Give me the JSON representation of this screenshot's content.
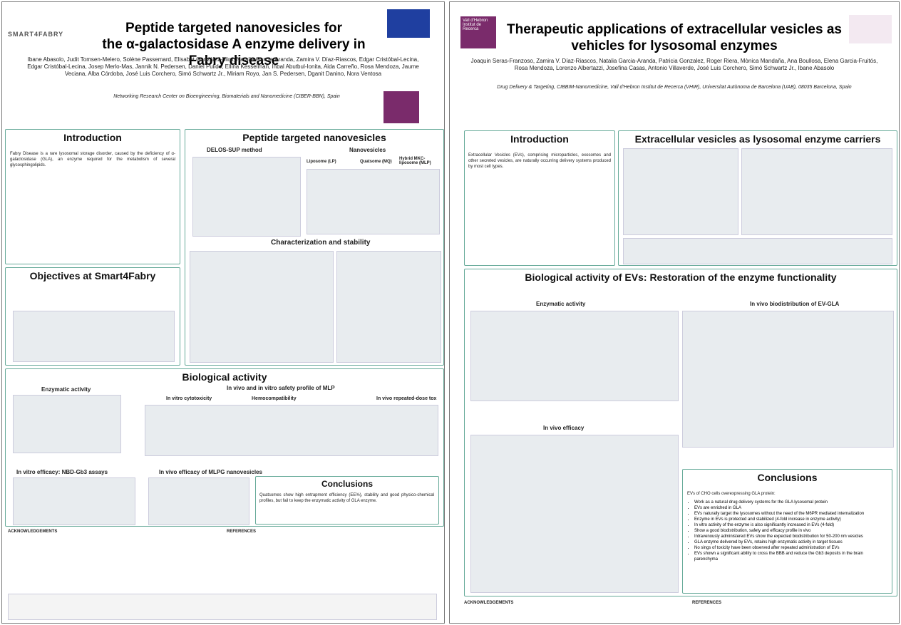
{
  "left": {
    "header": {
      "brand": "SMART4FABRY",
      "title_line1": "Peptide targeted nanovesicles for",
      "title_line2": "the α-galactosidase A enzyme delivery in Fabry disease",
      "authors": "Ibane Abasolo, Judit Tomsen-Melero, Solène Passemard, Elisabet González-Mira, Natalia García-Aranda, Zamira V. Díaz-Riascos, Edgar Cristóbal-Lecina, Edgar Cristóbal-Lecina, Josep Merlo-Mas, Jannik N. Pedersen, Daniel Pulido, Ellina Kesselman, Inbal Abutbul-Ionita, Aida Carreño, Rosa Mendoza, Jaume Veciana, Alba Córdoba, José Luis Corchero, Simó Schwartz Jr., Miriam Royo, Jan S. Pedersen, Dganit Danino, Nora Ventosa",
      "affiliation_start": "Networking Research Center on Bioengineering, Biomaterials and Nanomedicine (CIBER-BBN), Spain"
    },
    "introduction": {
      "heading": "Introduction",
      "text": "Fabry Disease is a rare lysosomal storage disorder, caused by the deficiency of α-galactosidase (GLA), an enzyme required for the metabolism of several glycosphingolipids."
    },
    "nanovesicles": {
      "heading": "Peptide targeted nanovesicles",
      "method": "DELOS-SUP method",
      "sub": "Nanovesicles",
      "liposome": "Liposome (LP)",
      "quatsome": "Quatsome (MQ)",
      "hybrid": "Hybrid MKC-liposome (MLP)",
      "stability": "Characterization and stability"
    },
    "objectives": {
      "heading": "Objectives at Smart4Fabry"
    },
    "biological": {
      "heading": "Biological activity",
      "enzymatic": "Enzymatic activity",
      "safety": "In vivo and in vitro safety profile of MLP",
      "cytotox": "In vitro cytotoxicity",
      "hemo": "Hemocompatibility",
      "repeated": "In vivo repeated-dose tox",
      "nbd": "In vitro efficacy: NBD-Gb3 assays",
      "efficacy": "In vivo efficacy of MLPG nanovesicles"
    },
    "conclusions": {
      "heading": "Conclusions",
      "text": "Quatsomes show high entrapment efficiency (EE%), stability and good physico-chemical profiles, but fail to keep the enzymatic activity of GLA enzyme."
    },
    "footer": {
      "ack": "ACKNOWLEDGEMENTS",
      "refs": "REFERENCES"
    }
  },
  "right": {
    "header": {
      "brand": "Vall d'Hebron Institut de Recerca",
      "title_line1": "Therapeutic applications of extracellular vesicles as",
      "title_line2": "vehicles for lysosomal enzymes",
      "authors": "Joaquin Seras-Franzoso, Zamira V. Díaz-Riascos, Natalia Garcia-Aranda, Patricia Gonzalez, Roger Riera, Mònica Mandaña, Ana Boullosa, Elena Garcia-Fruitós, Rosa Mendoza, Lorenzo Albertazzi, Josefina Casas, Antonio Villaverde, José Luis Corchero, Simó Schwartz Jr., Ibane Abasolo",
      "affiliation_start": "Drug Delivery & Targeting, CIBBIM-Nanomedicine, Vall d'Hebron Institut de Recerca (VHIR), Universitat Autònoma de Barcelona (UAB), 08035 Barcelona, Spain"
    },
    "introduction": {
      "heading": "Introduction",
      "text": "Extracellular Vesicles (EVs), comprising microparticles, exosomes and other secreted vesicles, are naturally occurring delivery systems produced by most cell types."
    },
    "carriers": {
      "heading": "Extracellular vesicles as lysosomal enzyme carriers"
    },
    "biological": {
      "heading": "Biological activity of EVs: Restoration of the enzyme functionality",
      "enzymatic": "Enzymatic activity",
      "biodist": "In vivo biodistribution of EV-GLA",
      "efficacy": "In vivo efficacy"
    },
    "conclusions": {
      "heading": "Conclusions",
      "intro": "EVs of CHO cells overexpressing GLA protein:",
      "items": [
        "Work as a natural drug delivery systems for the GLA lysosomal protein",
        "EVs are enriched in GLA",
        "EVs naturally target the lysosomes without the need of the M6PR mediated internalization",
        "Enzyme in EVs is protected and stabilized (4-fold increase in enzyme activity)",
        "In vitro activity of the enzyme is also significantly increased in EVs (4-fold)",
        "Show a good biodistribution, safety and efficacy profile in vivo",
        "Intravenously administered EVs show the expected biodistribution for 50-200 nm vesicles",
        "GLA enzyme delivered by EVs, retains high enzymatic activity in target tissues",
        "No sings of toxicity have been observed after repeated administration of EVs",
        "EVs shown a significant ability to cross the BBB and reduce the Gb3 deposits in the brain parenchyma"
      ]
    },
    "footer": {
      "ack": "ACKNOWLEDGEMENTS",
      "refs": "REFERENCES"
    }
  }
}
